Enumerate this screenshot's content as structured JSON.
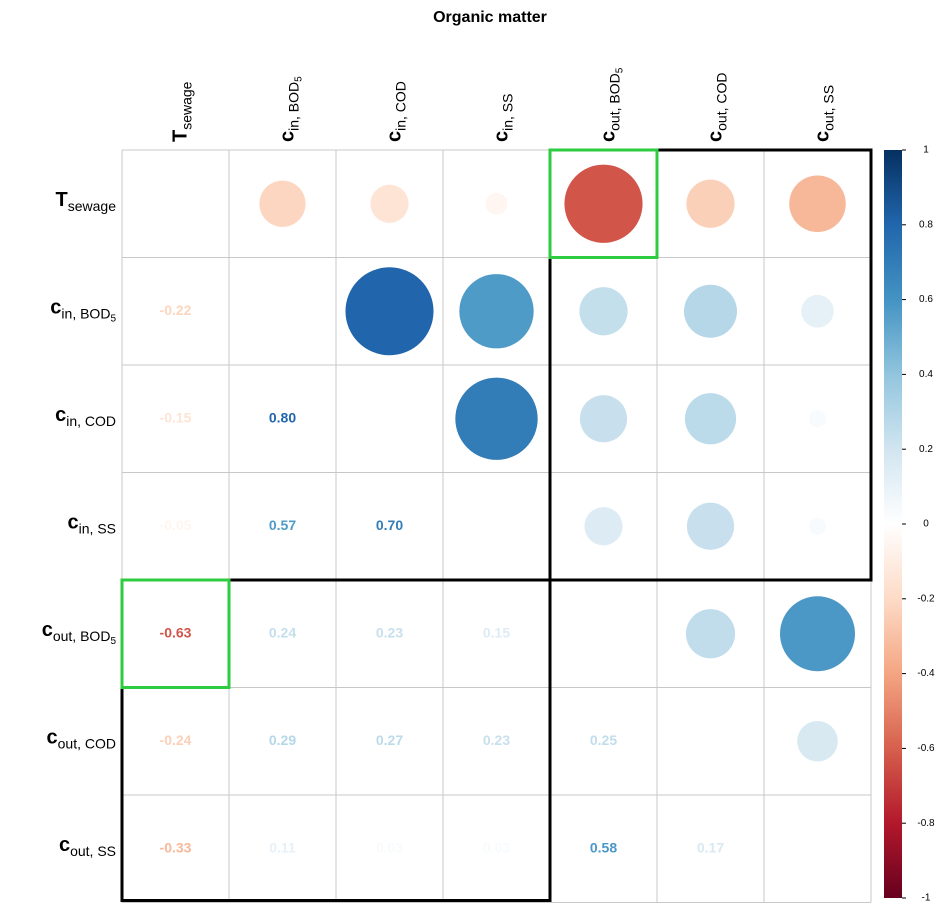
{
  "chart_data": {
    "type": "corrplot",
    "title": "Organic matter",
    "labels": [
      {
        "base": "T",
        "sub": "sewage"
      },
      {
        "base": "c",
        "sub": "in, BOD",
        "subsub": "5"
      },
      {
        "base": "c",
        "sub": "in, COD"
      },
      {
        "base": "c",
        "sub": "in, SS"
      },
      {
        "base": "c",
        "sub": "out, BOD",
        "subsub": "5"
      },
      {
        "base": "c",
        "sub": "out, COD"
      },
      {
        "base": "c",
        "sub": "out, SS"
      }
    ],
    "values": [
      [],
      [
        -0.22
      ],
      [
        -0.15,
        0.8
      ],
      [
        -0.05,
        0.57,
        0.7
      ],
      [
        -0.63,
        0.24,
        0.23,
        0.15
      ],
      [
        -0.24,
        0.29,
        0.27,
        0.23,
        0.25
      ],
      [
        -0.33,
        0.11,
        0.03,
        0.03,
        0.58,
        0.17
      ]
    ],
    "value_labels": [
      [],
      [
        "-0.22"
      ],
      [
        "-0.15",
        "0.80"
      ],
      [
        "-0.05",
        "0.57",
        "0.70"
      ],
      [
        "-0.63",
        "0.24",
        "0.23",
        "0.15"
      ],
      [
        "-0.24",
        "0.29",
        "0.27",
        "0.23",
        "0.25"
      ],
      [
        "-0.33",
        "0.11",
        "0.03",
        "0.03",
        "0.58",
        "0.17"
      ]
    ],
    "color_lim": [
      -1,
      1
    ],
    "color_ticks": [
      1,
      0.8,
      0.6,
      0.4,
      0.2,
      0,
      -0.2,
      -0.4,
      -0.6,
      -0.8,
      -1
    ],
    "colormap": [
      "#67001F",
      "#B2182B",
      "#D6604D",
      "#F4A582",
      "#FDDBC7",
      "#FFFFFF",
      "#D1E5F0",
      "#92C5DE",
      "#4393C3",
      "#2166AC",
      "#053061"
    ]
  }
}
